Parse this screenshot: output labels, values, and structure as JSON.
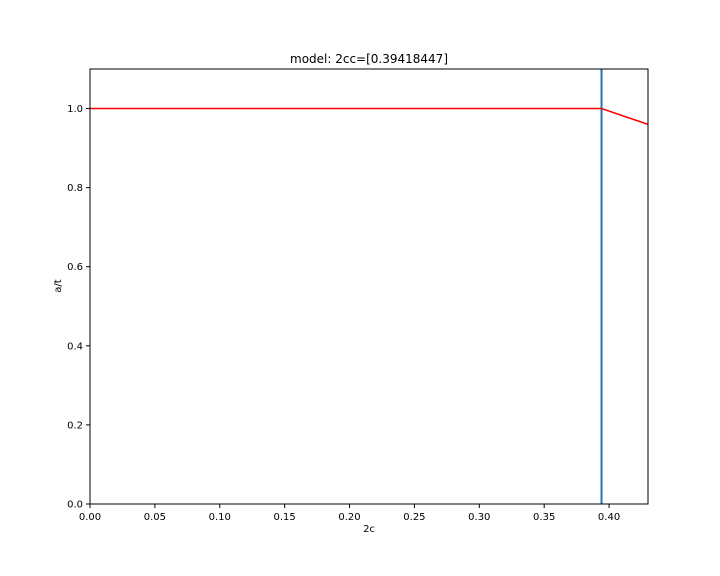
{
  "chart_data": {
    "type": "line",
    "title": "model: 2cc=[0.39418447]",
    "xlabel": "2c",
    "ylabel": "a/t",
    "xlim": [
      0.0,
      0.43
    ],
    "ylim": [
      0.0,
      1.1
    ],
    "xticks": [
      "0.00",
      "0.05",
      "0.10",
      "0.15",
      "0.20",
      "0.25",
      "0.30",
      "0.35",
      "0.40"
    ],
    "yticks": [
      "0.0",
      "0.2",
      "0.4",
      "0.6",
      "0.8",
      "1.0"
    ],
    "grid": false,
    "series": [
      {
        "color": "#ff0000",
        "x": [
          0.0,
          0.39418447,
          0.43
        ],
        "y": [
          1.0,
          1.0,
          0.96
        ]
      }
    ],
    "vlines": [
      {
        "x": 0.39418447,
        "color": "#1f77b4"
      }
    ]
  }
}
